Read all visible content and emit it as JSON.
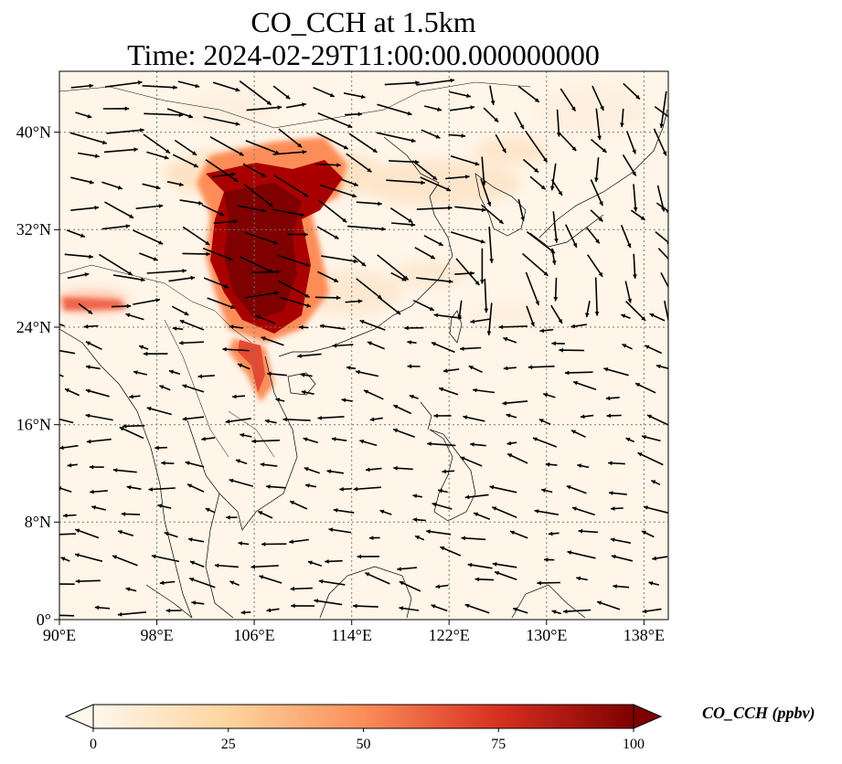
{
  "title": {
    "line1": "CO_CCH at 1.5km",
    "line2": "Time: 2024-02-29T11:00:00.000000000"
  },
  "map": {
    "lon_range": [
      90,
      140
    ],
    "lat_range": [
      0,
      45
    ],
    "lon_ticks": [
      "90°E",
      "98°E",
      "106°E",
      "114°E",
      "122°E",
      "130°E",
      "138°E"
    ],
    "lat_ticks": [
      "0°",
      "8°N",
      "16°N",
      "24°N",
      "32°N",
      "40°N"
    ],
    "gridlines": true,
    "field": "CO_CCH",
    "overlay": "wind vectors"
  },
  "colorbar": {
    "label": "CO_CCH (ppbv)",
    "ticks": [
      "0",
      "25",
      "50",
      "75",
      "100"
    ],
    "range": [
      0,
      100
    ],
    "extend": "both",
    "colormap": "OrRd",
    "colors": [
      "#fff7ec",
      "#fdd49e",
      "#fc8d59",
      "#d7301f",
      "#7f0000"
    ]
  }
}
